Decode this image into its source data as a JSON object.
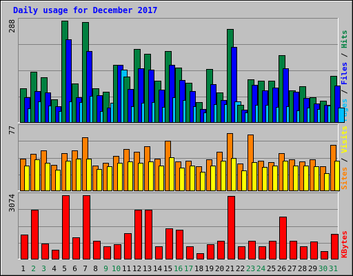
{
  "chart_data": [
    {
      "type": "bar",
      "title": "Daily usage for December 2017",
      "ylabel_parts": [
        "Pages",
        " / ",
        "Files",
        " / ",
        "Hits"
      ],
      "ymax_label": "288",
      "ylim": [
        0,
        288
      ],
      "categories": [
        "1",
        "2",
        "3",
        "4",
        "5",
        "6",
        "7",
        "8",
        "9",
        "10",
        "11",
        "12",
        "13",
        "14",
        "15",
        "16",
        "17",
        "18",
        "19",
        "20",
        "21",
        "22",
        "23",
        "24",
        "25",
        "26",
        "27",
        "28",
        "29",
        "30",
        "31"
      ],
      "weekend_days": [
        "2",
        "3",
        "9",
        "10",
        "16",
        "17",
        "23",
        "24",
        "30",
        "31"
      ],
      "series": [
        {
          "name": "Hits",
          "color": "#008040",
          "values": [
            95,
            142,
            127,
            65,
            287,
            108,
            282,
            95,
            86,
            162,
            128,
            206,
            193,
            117,
            201,
            154,
            111,
            57,
            150,
            83,
            262,
            48,
            121,
            117,
            117,
            189,
            90,
            102,
            71,
            60,
            131
          ]
        },
        {
          "name": "Files",
          "color": "#0000ff",
          "values": [
            70,
            87,
            84,
            44,
            234,
            71,
            201,
            76,
            40,
            162,
            93,
            151,
            148,
            91,
            162,
            118,
            88,
            37,
            107,
            62,
            213,
            35,
            106,
            89,
            97,
            151,
            86,
            69,
            53,
            49,
            103
          ]
        },
        {
          "name": "Pages",
          "color": "#00c0ff",
          "values": [
            38,
            59,
            47,
            31,
            58,
            56,
            73,
            31,
            54,
            148,
            44,
            55,
            56,
            43,
            71,
            62,
            45,
            28,
            50,
            51,
            58,
            28,
            48,
            48,
            42,
            44,
            34,
            41,
            36,
            47,
            41
          ]
        }
      ]
    },
    {
      "type": "bar",
      "ylabel_parts": [
        "Sites",
        " / ",
        "Visits"
      ],
      "ymax_label": "77",
      "ylim": [
        0,
        77
      ],
      "categories": [
        "1",
        "2",
        "3",
        "4",
        "5",
        "6",
        "7",
        "8",
        "9",
        "10",
        "11",
        "12",
        "13",
        "14",
        "15",
        "16",
        "17",
        "18",
        "19",
        "20",
        "21",
        "22",
        "23",
        "24",
        "25",
        "26",
        "27",
        "28",
        "29",
        "30",
        "31"
      ],
      "series": [
        {
          "name": "Visits",
          "color": "#ff8000",
          "values": [
            38,
            44,
            48,
            31,
            45,
            48,
            64,
            30,
            33,
            41,
            50,
            46,
            53,
            38,
            60,
            35,
            36,
            29,
            37,
            46,
            69,
            32,
            67,
            36,
            34,
            45,
            37,
            35,
            37,
            29,
            55
          ]
        },
        {
          "name": "Sites",
          "color": "#ffff00",
          "values": [
            30,
            37,
            33,
            25,
            36,
            38,
            38,
            26,
            29,
            33,
            35,
            33,
            35,
            30,
            40,
            27,
            30,
            22,
            30,
            36,
            39,
            24,
            34,
            28,
            30,
            36,
            30,
            30,
            29,
            21,
            36
          ]
        }
      ]
    },
    {
      "type": "bar",
      "ylabel_parts": [
        "KBytes"
      ],
      "ymax_label": "3074",
      "ylim": [
        0,
        3074
      ],
      "categories": [
        "1",
        "2",
        "3",
        "4",
        "5",
        "6",
        "7",
        "8",
        "9",
        "10",
        "11",
        "12",
        "13",
        "14",
        "15",
        "16",
        "17",
        "18",
        "19",
        "20",
        "21",
        "22",
        "23",
        "24",
        "25",
        "26",
        "27",
        "28",
        "29",
        "30",
        "31"
      ],
      "series": [
        {
          "name": "KBytes",
          "color": "#ff0000",
          "values": [
            1160,
            2347,
            729,
            435,
            3053,
            1032,
            3053,
            868,
            609,
            683,
            1223,
            2347,
            2347,
            609,
            1469,
            1376,
            599,
            249,
            683,
            866,
            3000,
            581,
            866,
            581,
            866,
            2032,
            866,
            599,
            830,
            353,
            1187
          ]
        }
      ]
    }
  ]
}
